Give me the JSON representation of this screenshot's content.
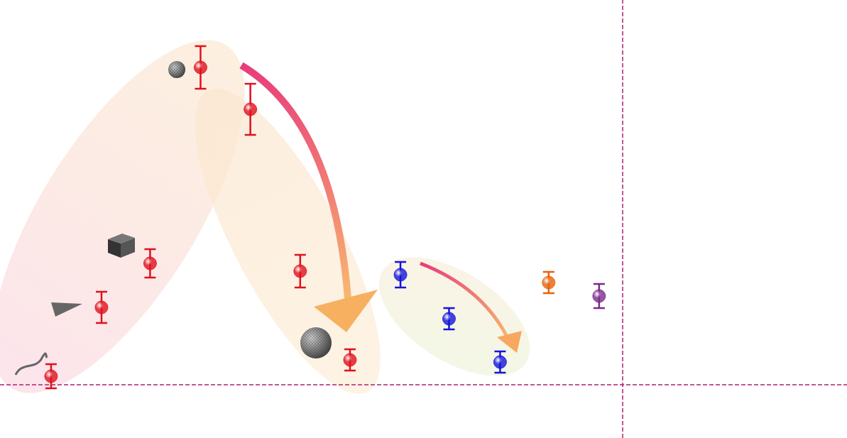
{
  "chart_data": {
    "type": "scatter",
    "tick_labels": false,
    "grid": false,
    "xlim": [
      0,
      13.6
    ],
    "ylim": [
      -0.75,
      5.42
    ],
    "reference_lines": {
      "x": [
        10
      ],
      "y": [
        0
      ]
    },
    "series": [
      {
        "color": "#e0101e",
        "x": [
          0.82,
          1.63,
          2.41,
          3.22,
          4.02,
          4.82,
          5.62
        ],
        "values": [
          0.12,
          1.09,
          1.71,
          4.47,
          3.88,
          1.6,
          0.35
        ],
        "errors": [
          0.17,
          0.22,
          0.2,
          0.3,
          0.36,
          0.23,
          0.15
        ]
      },
      {
        "color": "#1414dc",
        "x": [
          6.43,
          7.21,
          8.03
        ],
        "values": [
          1.55,
          0.93,
          0.32
        ],
        "errors": [
          0.18,
          0.15,
          0.15
        ]
      },
      {
        "color": "#e8600a",
        "x": [
          8.81
        ],
        "values": [
          1.44
        ],
        "errors": [
          0.15
        ]
      },
      {
        "color": "#7a2a8c",
        "x": [
          9.62
        ],
        "values": [
          1.25
        ],
        "errors": [
          0.17
        ]
      }
    ]
  }
}
